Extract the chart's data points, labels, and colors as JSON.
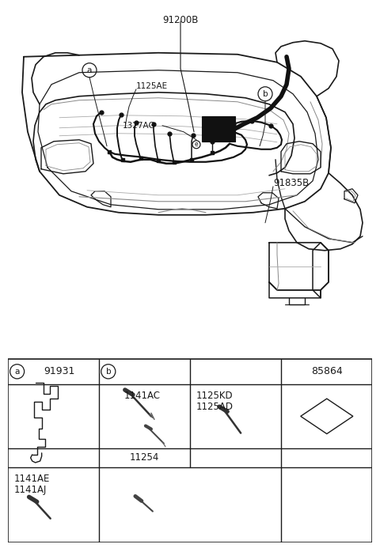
{
  "bg_color": "#ffffff",
  "line_color": "#1a1a1a",
  "gray_color": "#555555",
  "fig_width": 4.8,
  "fig_height": 6.93,
  "dpi": 100,
  "title_top": "91200B",
  "label_a": "a",
  "label_b": "b",
  "label_1125AE": "1125AE",
  "label_1327AC": "1327AC",
  "label_e": "e",
  "label_91835B": "91835B",
  "part_91931": "91931",
  "part_85864": "85864",
  "part_1141AC": "1141AC",
  "part_1125KD": "1125KD",
  "part_1125AD": "1125AD",
  "part_11254": "11254",
  "part_1141AE": "1141AE",
  "part_1141AJ": "1141AJ"
}
